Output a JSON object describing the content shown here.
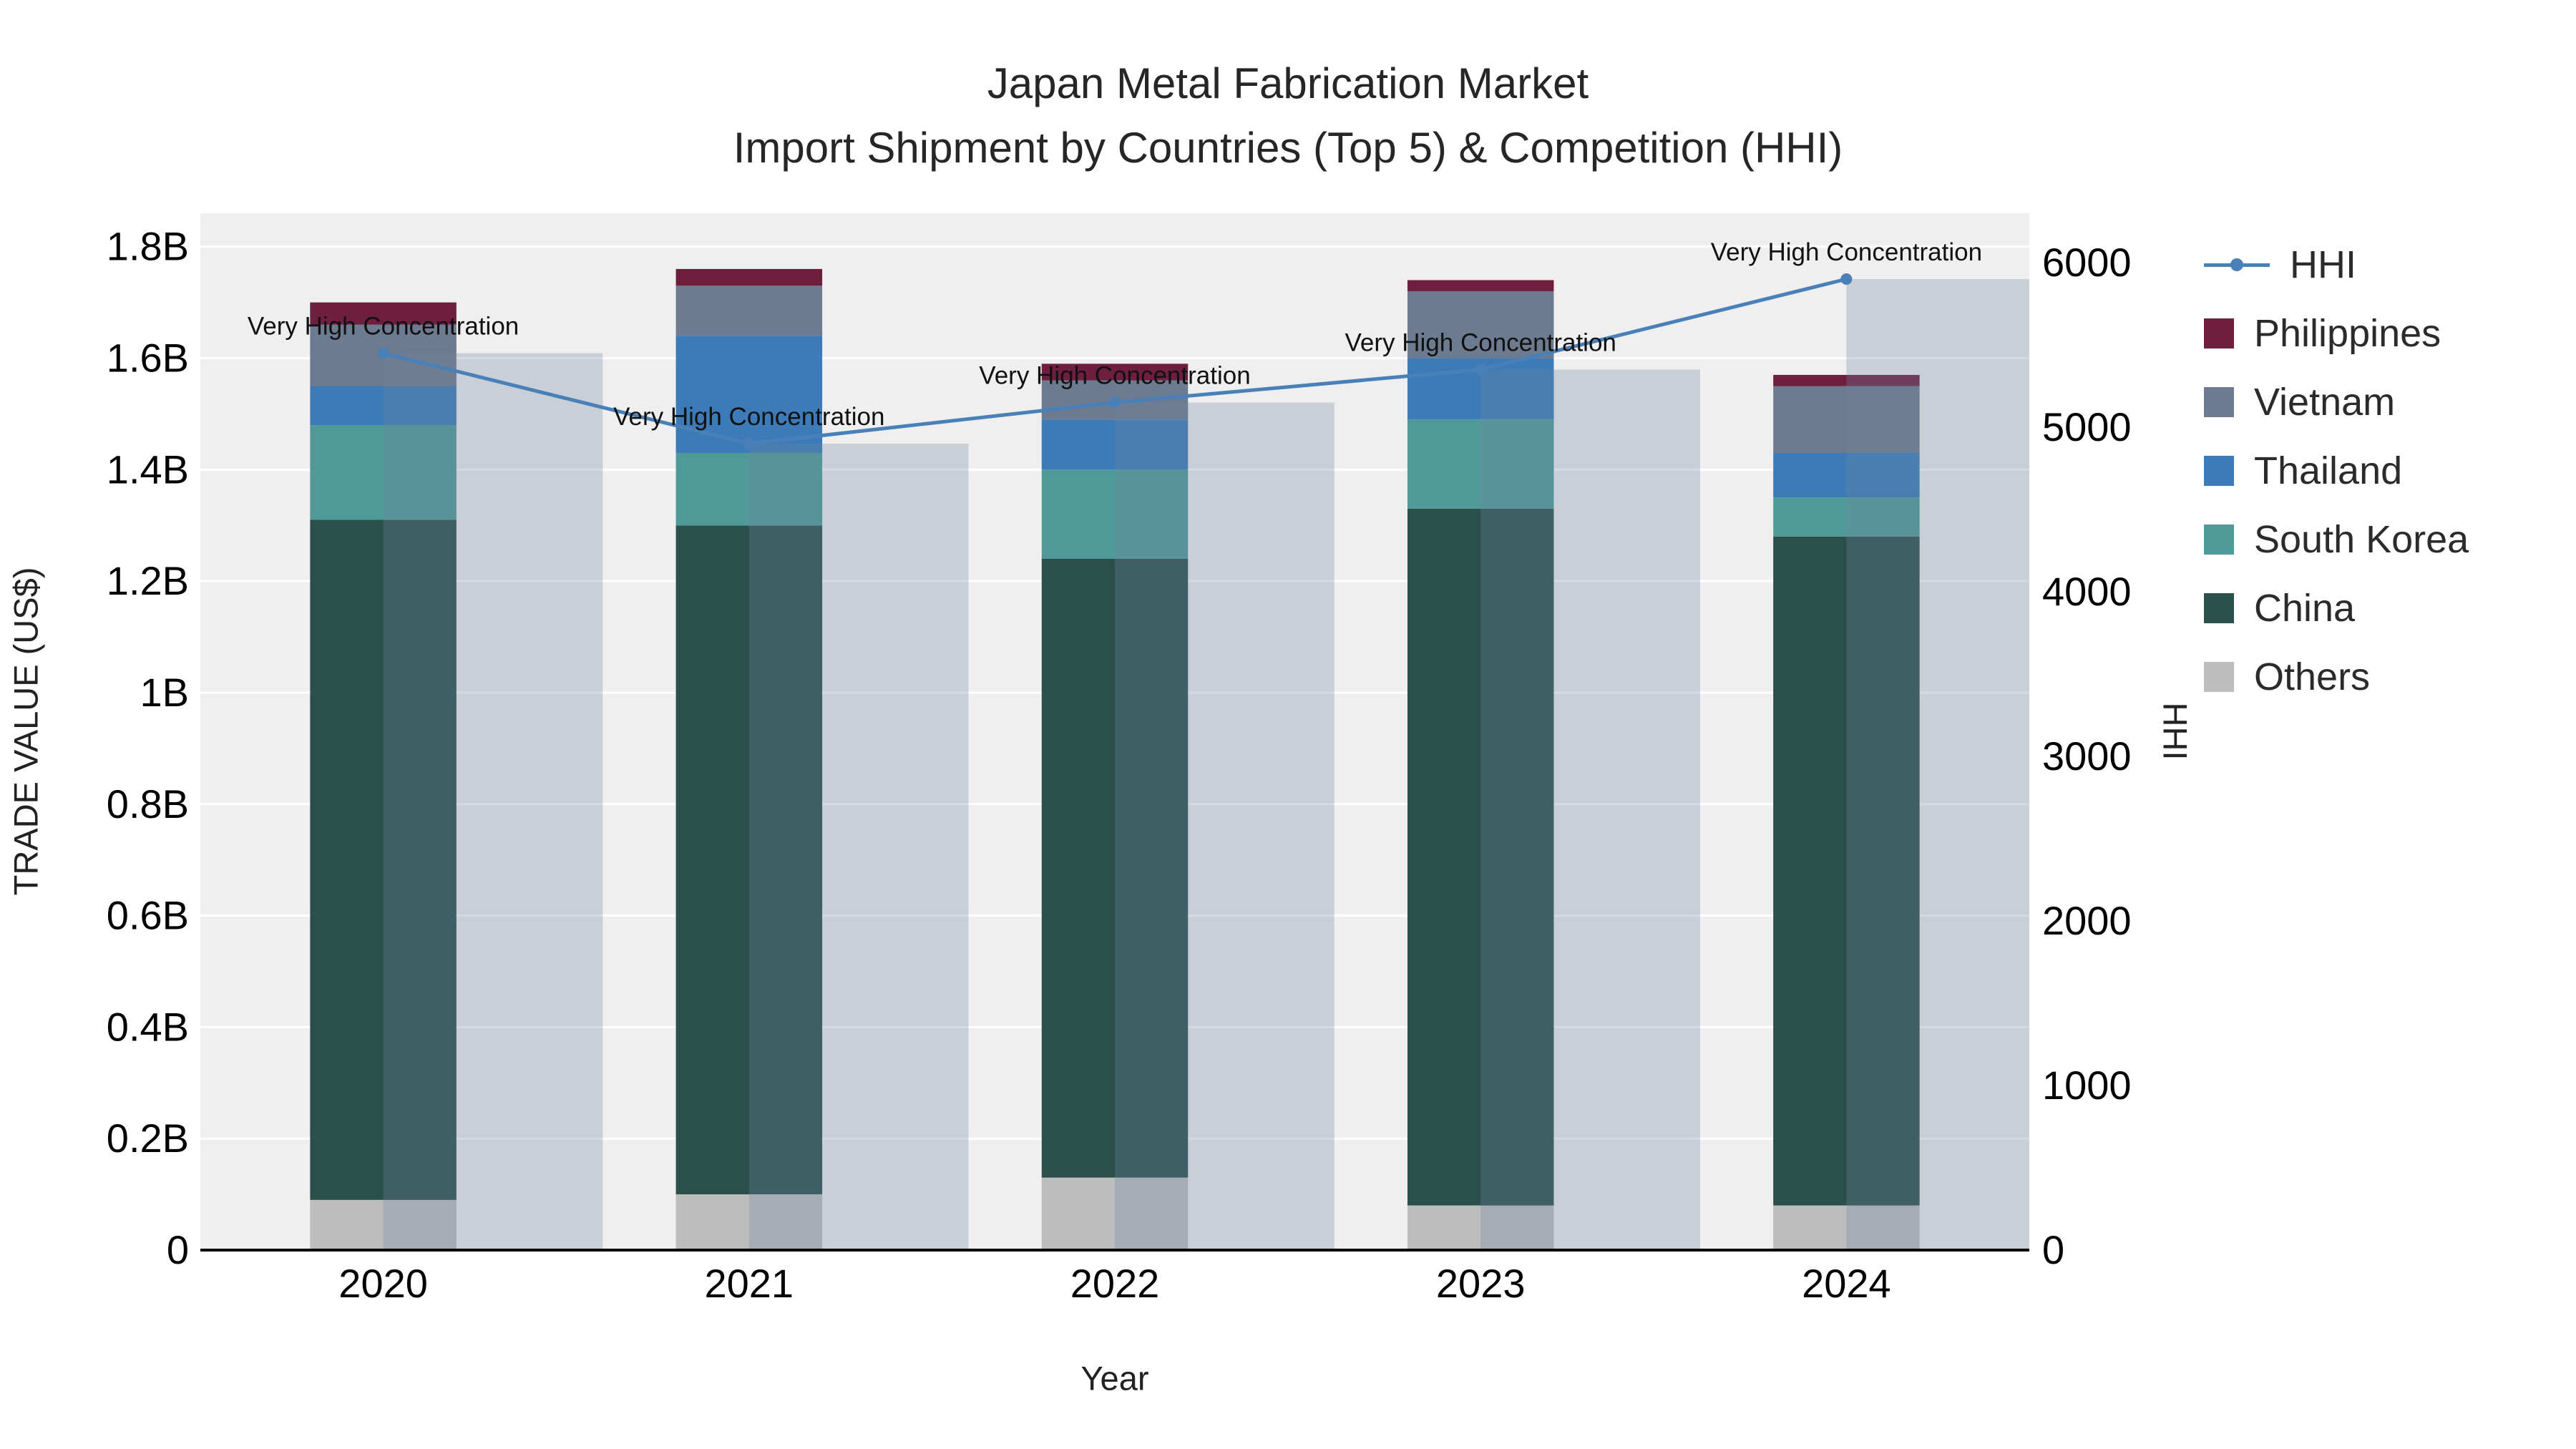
{
  "title": {
    "line1": "Japan Metal Fabrication Market",
    "line2": "Import Shipment by Countries (Top 5) & Competition (HHI)"
  },
  "chart_data": {
    "type": "stacked-bar+line",
    "categories": [
      "2020",
      "2021",
      "2022",
      "2023",
      "2024"
    ],
    "xlabel": "Year",
    "ylabel_left": "TRADE VALUE (US$)",
    "ylabel_right": "HHI",
    "bar_value_unit": "billions USD",
    "bar_series": [
      {
        "name": "Others",
        "color": "#bdbdbd",
        "values": [
          0.09,
          0.1,
          0.13,
          0.08,
          0.08
        ]
      },
      {
        "name": "China",
        "color": "#2b504c",
        "values": [
          1.22,
          1.2,
          1.11,
          1.25,
          1.2
        ]
      },
      {
        "name": "South Korea",
        "color": "#4f9a99",
        "values": [
          0.17,
          0.13,
          0.16,
          0.16,
          0.07
        ]
      },
      {
        "name": "Thailand",
        "color": "#3d7bb8",
        "values": [
          0.07,
          0.21,
          0.09,
          0.11,
          0.08
        ]
      },
      {
        "name": "Vietnam",
        "color": "#6d7b90",
        "values": [
          0.11,
          0.09,
          0.07,
          0.12,
          0.12
        ]
      },
      {
        "name": "Philippines",
        "color": "#6e1f3e",
        "values": [
          0.04,
          0.03,
          0.03,
          0.02,
          0.02
        ]
      }
    ],
    "line_series": {
      "name": "HHI",
      "color": "#4a80b8",
      "band_color": "rgba(110,132,158,0.30)",
      "values": [
        5450,
        4900,
        5150,
        5350,
        5900
      ]
    },
    "annotation_text": "Very High Concentration",
    "yticks_left": {
      "values": [
        0,
        0.2,
        0.4,
        0.6,
        0.8,
        1.0,
        1.2,
        1.4,
        1.6,
        1.8
      ],
      "labels": [
        "0",
        "0.2B",
        "0.4B",
        "0.6B",
        "0.8B",
        "1B",
        "1.2B",
        "1.4B",
        "1.6B",
        "1.8B"
      ]
    },
    "ylim_left": [
      0,
      1.86
    ],
    "yticks_right": {
      "values": [
        0,
        1000,
        2000,
        3000,
        4000,
        5000,
        6000
      ],
      "labels": [
        "0",
        "1000",
        "2000",
        "3000",
        "4000",
        "5000",
        "6000"
      ]
    },
    "ylim_right": [
      0,
      6300
    ],
    "legend_order": [
      "HHI",
      "Philippines",
      "Vietnam",
      "Thailand",
      "South Korea",
      "China",
      "Others"
    ]
  }
}
